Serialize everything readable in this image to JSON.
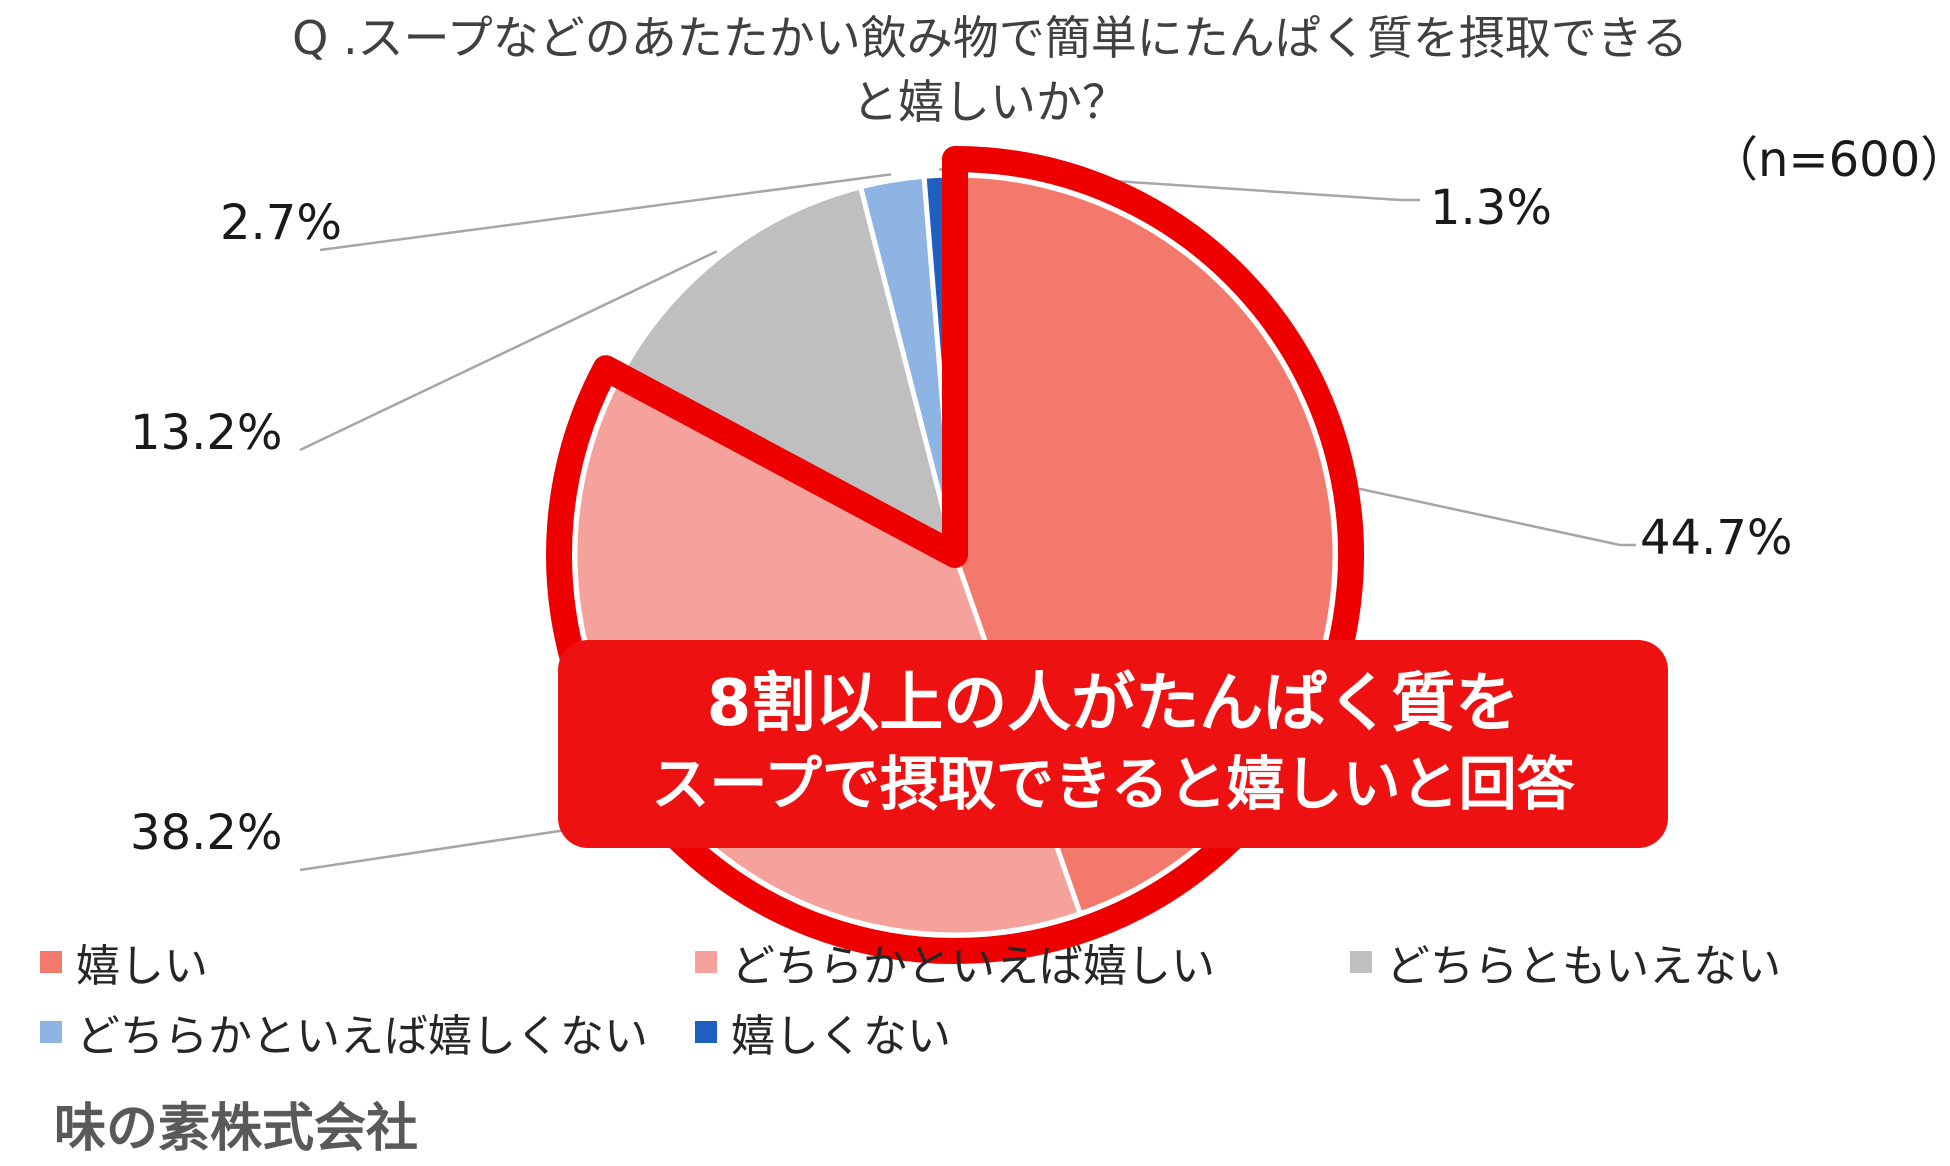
{
  "title_lines": [
    "Q .スープなどのあたたかい飲み物で簡単にたんぱく質を摂取できる",
    "と嬉しいか？"
  ],
  "sample_size": "（n=600）",
  "chart_data": {
    "type": "pie",
    "title": "Q .スープなどのあたたかい飲み物で簡単にたんぱく質を摂取できると嬉しいか？",
    "n": 600,
    "slices": [
      {
        "label": "嬉しい",
        "value": 44.7,
        "display": "44.7%",
        "color": "#f4796d"
      },
      {
        "label": "どちらかといえば嬉しい",
        "value": 38.2,
        "display": "38.2%",
        "color": "#f5a29c"
      },
      {
        "label": "どちらともいえない",
        "value": 13.2,
        "display": "13.2%",
        "color": "#bfbfbf"
      },
      {
        "label": "どちらかといえば嬉しくない",
        "value": 2.7,
        "display": "2.7%",
        "color": "#8eb4e3"
      },
      {
        "label": "嬉しくない",
        "value": 1.3,
        "display": "1.3%",
        "color": "#1f5fbf"
      }
    ],
    "highlight_color": "#ee0000",
    "legend_position": "bottom"
  },
  "callout": {
    "line1": "8割以上の人がたんぱく質を",
    "line2": "スープで摂取できると嬉しいと回答"
  },
  "source": "味の素株式会社"
}
